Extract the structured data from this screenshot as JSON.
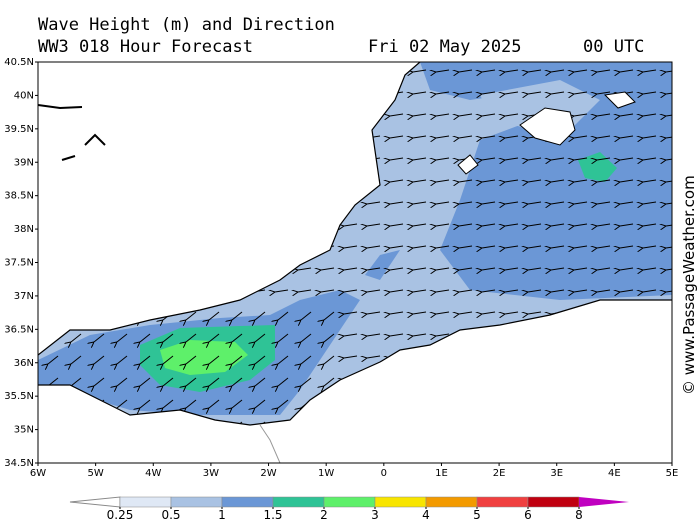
{
  "header": {
    "title": "Wave Height (m) and Direction",
    "subtitle": "WW3 018 Hour Forecast",
    "date": "Fri 02 May 2025",
    "time": "00 UTC"
  },
  "map": {
    "latitude_labels": [
      "40.5N",
      "40N",
      "39.5N",
      "39N",
      "38.5N",
      "38N",
      "37.5N",
      "37N",
      "36.5N",
      "36N",
      "35.5N",
      "35N",
      "34.5N"
    ],
    "longitude_labels": [
      "6W",
      "5W",
      "4W",
      "3W",
      "2W",
      "1W",
      "0",
      "1E",
      "2E",
      "3E",
      "4E",
      "5E"
    ]
  },
  "legend": {
    "levels": [
      0.25,
      0.5,
      1,
      1.5,
      2,
      3,
      4,
      5,
      6,
      8
    ],
    "colors": [
      "#dfe8f5",
      "#a9c2e3",
      "#6b97d6",
      "#2fc396",
      "#5ef06a",
      "#f8e500",
      "#f39a00",
      "#f04040",
      "#c00010"
    ]
  },
  "watermark": "© www.PassageWeather.com"
}
